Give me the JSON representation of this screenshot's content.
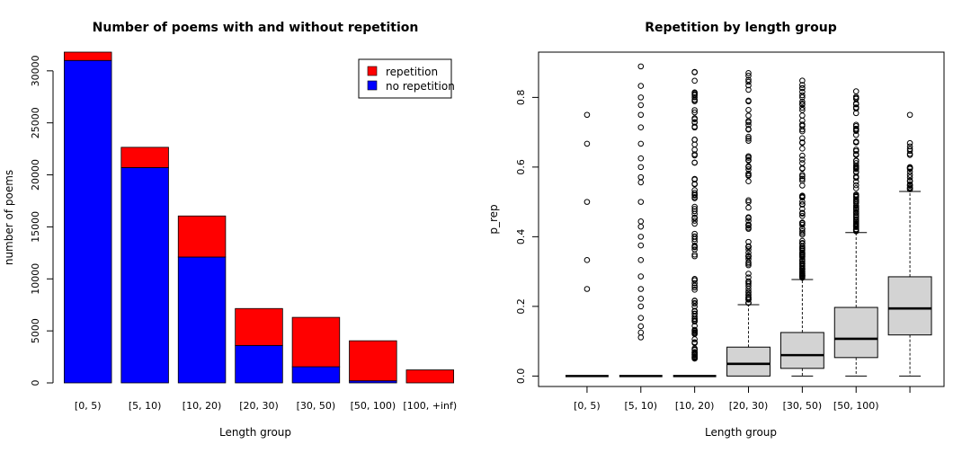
{
  "chart_data": [
    {
      "type": "bar",
      "stacked": true,
      "title": "Number of poems with and without repetition",
      "xlabel": "Length group",
      "ylabel": "number of poems",
      "categories": [
        "[0, 5)",
        "[5, 10)",
        "[10, 20)",
        "[20, 30)",
        "[30, 50)",
        "[50, 100)",
        "[100, +inf)"
      ],
      "ylim": [
        0,
        31800
      ],
      "yticks": [
        0,
        5000,
        10000,
        15000,
        20000,
        25000,
        30000
      ],
      "series": [
        {
          "name": "no repetition",
          "color": "#0000ff",
          "values": [
            31000,
            20700,
            12100,
            3600,
            1550,
            200,
            0
          ]
        },
        {
          "name": "repetition",
          "color": "#ff0000",
          "values": [
            800,
            1950,
            3950,
            3550,
            4750,
            3850,
            1250
          ]
        }
      ],
      "legend": {
        "position": "top-right",
        "entries": [
          "repetition",
          "no repetition"
        ]
      },
      "grid": false
    },
    {
      "type": "boxplot",
      "title": "Repetition by length group",
      "xlabel": "Length group",
      "ylabel": "p_rep",
      "categories": [
        "[0, 5)",
        "[5, 10)",
        "[10, 20)",
        "[20, 30)",
        "[30, 50)",
        "[50, 100)",
        ""
      ],
      "ylim": [
        -0.03,
        0.93
      ],
      "yticks": [
        "0.0",
        "0.2",
        "0.4",
        "0.6",
        "0.8"
      ],
      "grid": false,
      "boxes": [
        {
          "q1": 0,
          "median": 0,
          "q3": 0,
          "whisker_low": 0,
          "whisker_high": 0,
          "outliers": [
            0.25,
            0.333,
            0.5,
            0.667,
            0.75
          ]
        },
        {
          "q1": 0,
          "median": 0,
          "q3": 0,
          "whisker_low": 0,
          "whisker_high": 0,
          "outliers": [
            0.111,
            0.125,
            0.143,
            0.167,
            0.2,
            0.222,
            0.25,
            0.286,
            0.333,
            0.375,
            0.4,
            0.429,
            0.444,
            0.5,
            0.556,
            0.571,
            0.6,
            0.625,
            0.667,
            0.714,
            0.75,
            0.778,
            0.8,
            0.833,
            0.889
          ]
        },
        {
          "q1": 0,
          "median": 0,
          "q3": 0,
          "whisker_low": 0,
          "whisker_high": 0,
          "outlier_range": [
            0.05,
            0.89
          ],
          "outlier_count": 110
        },
        {
          "q1": 0,
          "median": 0.035,
          "q3": 0.083,
          "whisker_low": 0,
          "whisker_high": 0.205,
          "outlier_range": [
            0.21,
            0.875
          ],
          "outlier_count": 75
        },
        {
          "q1": 0.022,
          "median": 0.06,
          "q3": 0.125,
          "whisker_low": 0,
          "whisker_high": 0.277,
          "outlier_range": [
            0.28,
            0.865
          ],
          "outlier_count": 95
        },
        {
          "q1": 0.053,
          "median": 0.107,
          "q3": 0.197,
          "whisker_low": 0,
          "whisker_high": 0.412,
          "outlier_range": [
            0.415,
            0.82
          ],
          "outlier_count": 90
        },
        {
          "q1": 0.118,
          "median": 0.194,
          "q3": 0.285,
          "whisker_low": 0,
          "whisker_high": 0.53,
          "outlier_range": [
            0.535,
            0.67
          ],
          "outlier_count": 22,
          "extra_outliers": [
            0.75
          ]
        }
      ]
    }
  ]
}
